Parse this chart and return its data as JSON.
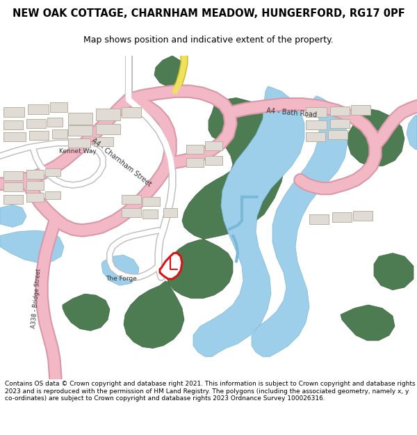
{
  "title_line1": "NEW OAK COTTAGE, CHARNHAM MEADOW, HUNGERFORD, RG17 0PF",
  "title_line2": "Map shows position and indicative extent of the property.",
  "footer": "Contains OS data © Crown copyright and database right 2021. This information is subject to Crown copyright and database rights 2023 and is reproduced with the permission of HM Land Registry. The polygons (including the associated geometry, namely x, y co-ordinates) are subject to Crown copyright and database rights 2023 Ordnance Survey 100026316.",
  "map_bg": "#f5f3f0",
  "green": "#4e7c52",
  "green_edge": "#3d6340",
  "water": "#9ecfea",
  "water_edge": "#7ab8d8",
  "road_pink": "#f2b8c6",
  "road_pink_edge": "#d898a8",
  "road_yellow": "#f0e060",
  "road_yellow_edge": "#c8b820",
  "road_white": "#ffffff",
  "road_gray_edge": "#bbbbbb",
  "building_fill": "#e0dbd4",
  "building_edge": "#b8b0a0",
  "red_plot": "#dd1111",
  "text_dark": "#333333",
  "title_fs": 10.5,
  "sub_fs": 9.0,
  "footer_fs": 6.5,
  "label_fs": 7.0
}
